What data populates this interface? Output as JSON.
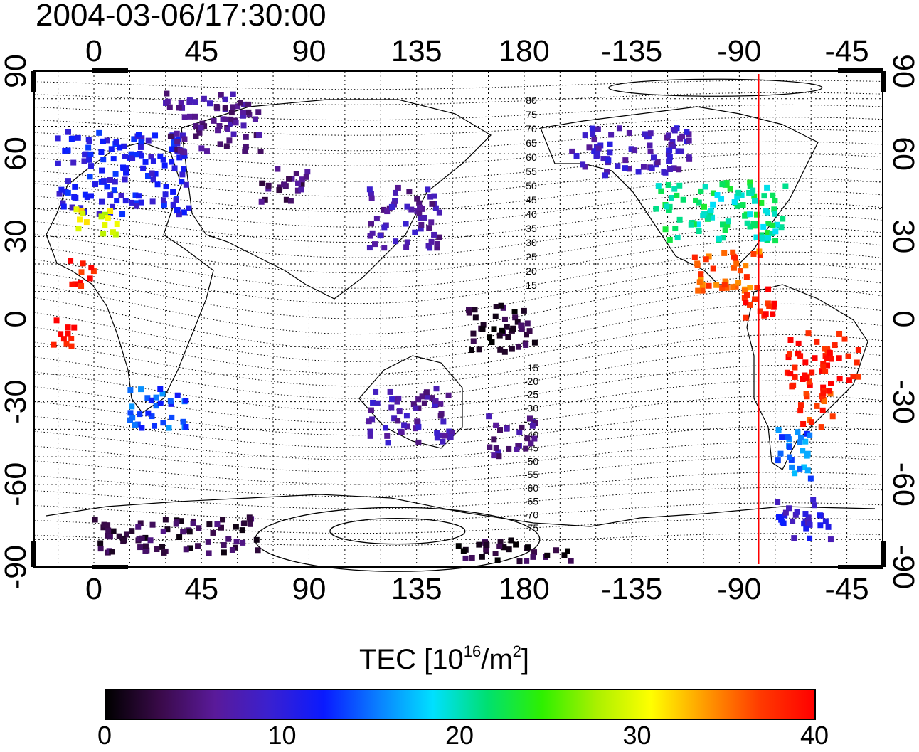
{
  "map_title": "2004-03-06/17:30:00",
  "axes": {
    "x_top_ticks": [
      "0",
      "45",
      "90",
      "135",
      "180",
      "-135",
      "-90",
      "-45"
    ],
    "x_bottom_ticks": [
      "0",
      "45",
      "90",
      "135",
      "180",
      "-135",
      "-90",
      "-45"
    ],
    "y_left_ticks": [
      "90",
      "60",
      "30",
      "0",
      "-30",
      "-60",
      "-90"
    ],
    "y_right_ticks": [
      "90",
      "60",
      "30",
      "0",
      "-30",
      "-60",
      "-90"
    ],
    "lon_range": [
      -25,
      330
    ],
    "lat_range": [
      -90,
      90
    ],
    "grid": true
  },
  "contour_labels_north": [
    "80",
    "75",
    "70",
    "65",
    "60",
    "55",
    "50",
    "45",
    "40",
    "35",
    "30",
    "25",
    "20",
    "15"
  ],
  "contour_labels_south": [
    "-15",
    "-20",
    "-25",
    "-30",
    "-35",
    "-40",
    "-45",
    "-50",
    "-55",
    "-60",
    "-65",
    "-70",
    "-75"
  ],
  "terminator_line": {
    "longitude": -82,
    "color": "#ff0000"
  },
  "colorbar": {
    "title_prefix": "TEC  [10",
    "title_exp": "16",
    "title_mid": "/m",
    "title_exp2": "2",
    "title_suffix": "]",
    "ticks": [
      "0",
      "10",
      "20",
      "30",
      "40"
    ],
    "min": 0,
    "max": 40,
    "colors": [
      "#000000",
      "#3a0a4a",
      "#5a1a9a",
      "#3a20d0",
      "#0a1aff",
      "#0a80ff",
      "#00e0ff",
      "#00e070",
      "#2ef000",
      "#aaf000",
      "#ffff00",
      "#ff9a00",
      "#ff3a00",
      "#ff0000"
    ]
  },
  "chart_data": {
    "type": "scatter",
    "title": "2004-03-06/17:30:00",
    "xlabel": "",
    "ylabel": "",
    "value_label": "TEC  [10^16/m^2]",
    "clusters": [
      {
        "lon": [
          -15,
          40
        ],
        "lat": [
          38,
          68
        ],
        "tec": 11
      },
      {
        "lon": [
          30,
          70
        ],
        "lat": [
          60,
          82
        ],
        "tec": 6
      },
      {
        "lon": [
          -8,
          10
        ],
        "lat": [
          30,
          40
        ],
        "tec": 30
      },
      {
        "lon": [
          -10,
          0
        ],
        "lat": [
          12,
          22
        ],
        "tec": 39
      },
      {
        "lon": [
          -18,
          -8
        ],
        "lat": [
          -12,
          0
        ],
        "tec": 39
      },
      {
        "lon": [
          15,
          40
        ],
        "lat": [
          -40,
          -25
        ],
        "tec": 14
      },
      {
        "lon": [
          70,
          90
        ],
        "lat": [
          42,
          55
        ],
        "tec": 5
      },
      {
        "lon": [
          115,
          145
        ],
        "lat": [
          25,
          48
        ],
        "tec": 7
      },
      {
        "lon": [
          155,
          185
        ],
        "lat": [
          -12,
          5
        ],
        "tec": 2
      },
      {
        "lon": [
          115,
          150
        ],
        "lat": [
          -45,
          -25
        ],
        "tec": 7
      },
      {
        "lon": [
          165,
          185
        ],
        "lat": [
          -50,
          -35
        ],
        "tec": 6
      },
      {
        "lon": [
          -160,
          -110
        ],
        "lat": [
          52,
          70
        ],
        "tec": 8
      },
      {
        "lon": [
          -125,
          -70
        ],
        "lat": [
          28,
          50
        ],
        "tec": 21
      },
      {
        "lon": [
          -110,
          -80
        ],
        "lat": [
          10,
          25
        ],
        "tec": 36
      },
      {
        "lon": [
          -90,
          -75
        ],
        "lat": [
          0,
          12
        ],
        "tec": 39
      },
      {
        "lon": [
          -70,
          -40
        ],
        "lat": [
          -25,
          -5
        ],
        "tec": 39
      },
      {
        "lon": [
          -65,
          -50
        ],
        "lat": [
          -40,
          -25
        ],
        "tec": 37
      },
      {
        "lon": [
          -75,
          -60
        ],
        "lat": [
          -60,
          -40
        ],
        "tec": 15
      },
      {
        "lon": [
          -75,
          -50
        ],
        "lat": [
          -80,
          -65
        ],
        "tec": 10
      },
      {
        "lon": [
          0,
          70
        ],
        "lat": [
          -85,
          -72
        ],
        "tec": 3
      },
      {
        "lon": [
          150,
          200
        ],
        "lat": [
          -88,
          -80
        ],
        "tec": 2
      }
    ]
  }
}
